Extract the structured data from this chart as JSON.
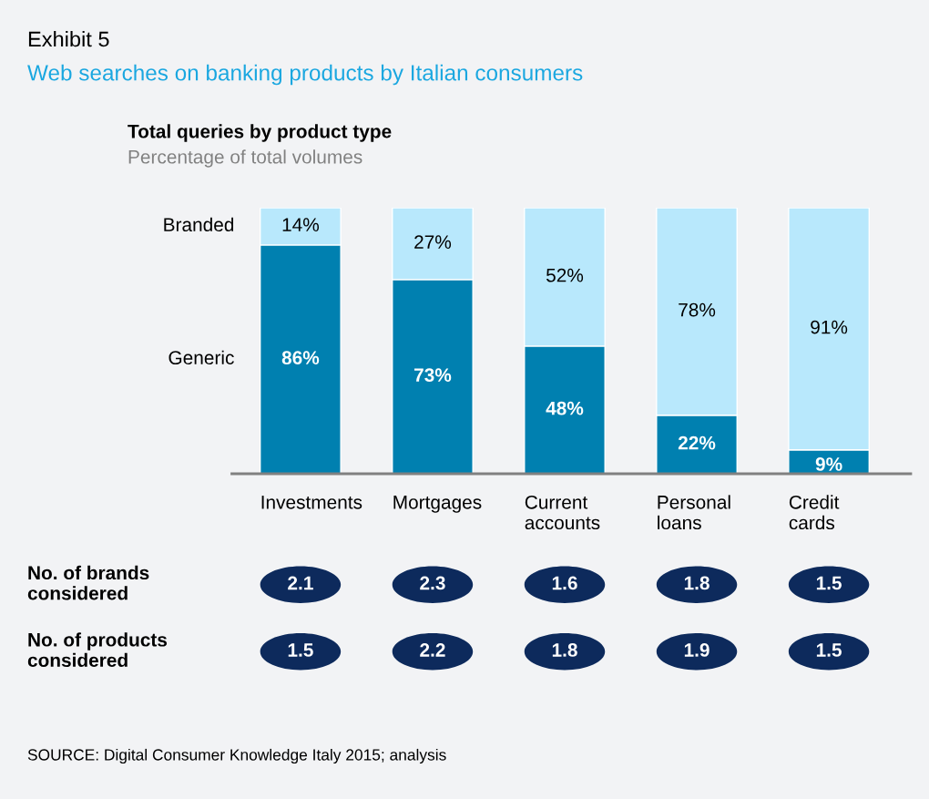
{
  "chart_data": [
    {
      "type": "bar",
      "title": "Web searches on banking products by Italian consumers",
      "stacked": true,
      "data_labels": false,
      "annotations": [
        "Exhibit 5",
        "Total queries by product type",
        "Percentage of total volumes",
        "SOURCE: Digital Consumer Knowledge Italy 2015; analysis"
      ],
      "categories": [
        "Investments",
        "Mortgages",
        "Current\naccounts",
        "Personal\nloans",
        "Credit\ncards"
      ],
      "series": [
        {
          "name": "Generic",
          "color": "#0080b0",
          "values": [
            86,
            73,
            48,
            22,
            9
          ],
          "value_labels": [
            "86%",
            "73%",
            "48%",
            "22%",
            "9%"
          ]
        },
        {
          "name": "Branded",
          "color": "#b8e8fc",
          "values": [
            14,
            27,
            52,
            78,
            91
          ],
          "value_labels": [
            "14%",
            "27%",
            "52%",
            "78%",
            "91%"
          ]
        }
      ]
    },
    {
      "type": "other",
      "annotations": [
        "No. of brands\nconsidered",
        "2.1",
        "2.3",
        "1.6",
        "1.8",
        "1.5",
        "No. of products\nconsidered",
        "1.5",
        "2.2",
        "1.8",
        "1.9",
        "1.5"
      ]
    }
  ]
}
